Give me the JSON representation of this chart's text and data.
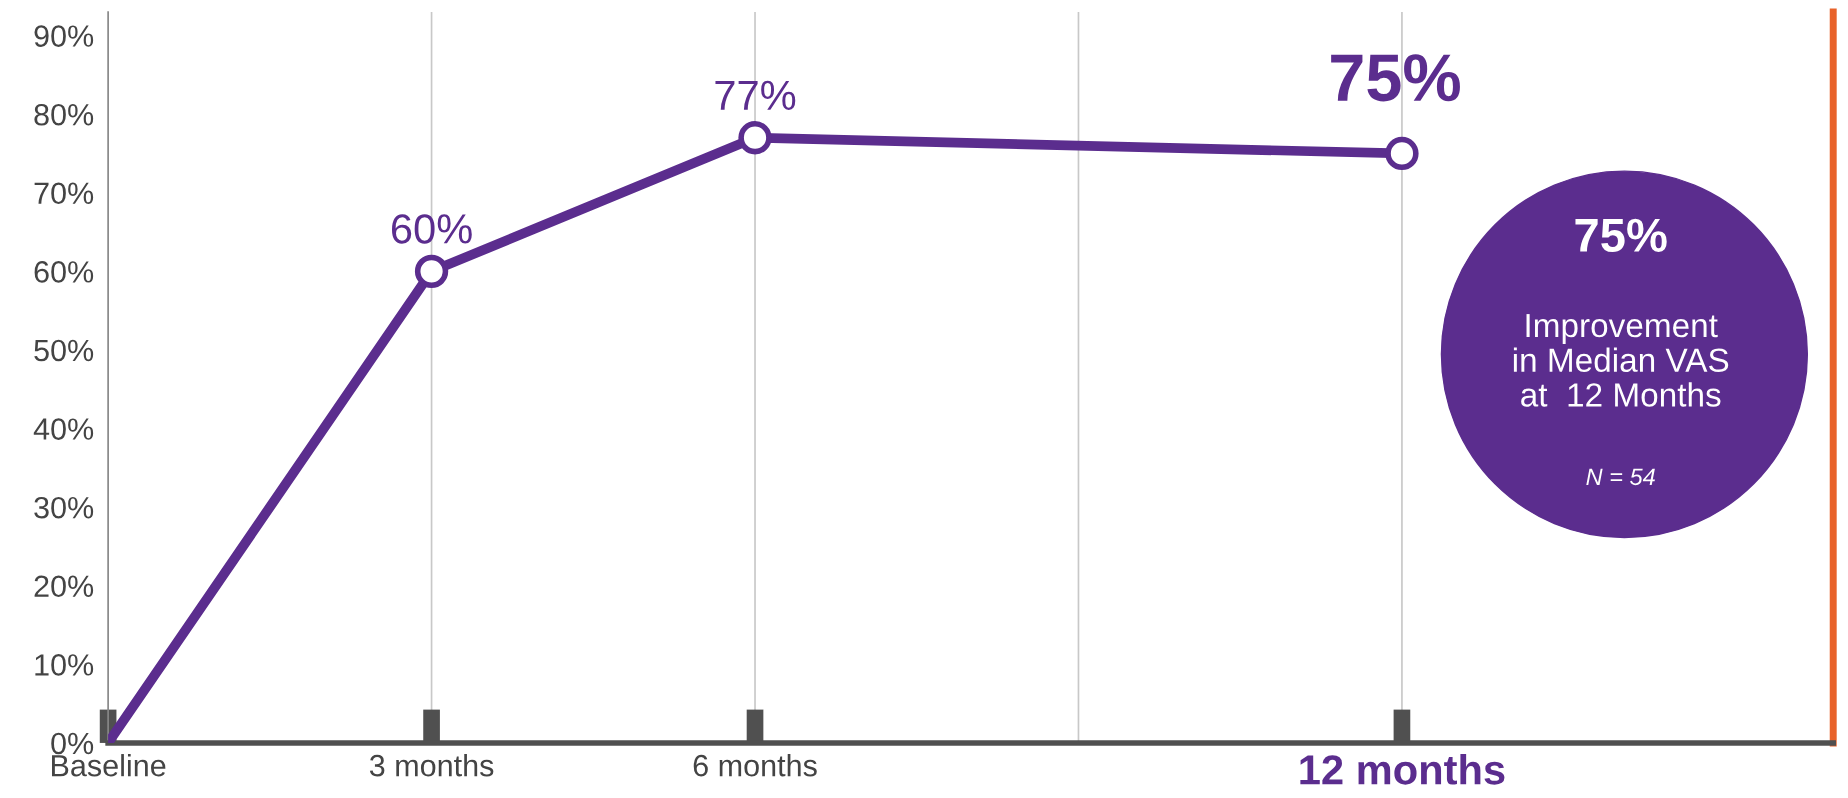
{
  "chart_data": {
    "type": "line",
    "x": [
      0,
      3,
      6,
      12
    ],
    "series": [
      {
        "color": "#5b2d8e",
        "values": [
          0,
          60,
          77,
          75
        ],
        "value_labels": [
          null,
          "60%",
          "77%",
          "75%"
        ]
      }
    ],
    "xlim": [
      0,
      16
    ],
    "xticks": [
      {
        "value": 0,
        "label": "Baseline"
      },
      {
        "value": 3,
        "label": "3 months"
      },
      {
        "value": 6,
        "label": "6 months"
      },
      {
        "value": 9,
        "label": null
      },
      {
        "value": 12,
        "label": "12 months"
      }
    ],
    "ylim": [
      0,
      93
    ],
    "yticks": [
      {
        "value": 0,
        "label": "0%"
      },
      {
        "value": 10,
        "label": "10%"
      },
      {
        "value": 20,
        "label": "20%"
      },
      {
        "value": 30,
        "label": "30%"
      },
      {
        "value": 40,
        "label": "40%"
      },
      {
        "value": 50,
        "label": "50%"
      },
      {
        "value": 60,
        "label": "60%"
      },
      {
        "value": 70,
        "label": "70%"
      },
      {
        "value": 80,
        "label": "80%"
      },
      {
        "value": 90,
        "label": "90%"
      }
    ],
    "grid": "x",
    "marker": "circle",
    "line_style": "solid",
    "legend": false,
    "annotations": [
      "75%",
      "Improvement\nin Median VAS\nat  12 Months",
      "N = 54"
    ]
  }
}
